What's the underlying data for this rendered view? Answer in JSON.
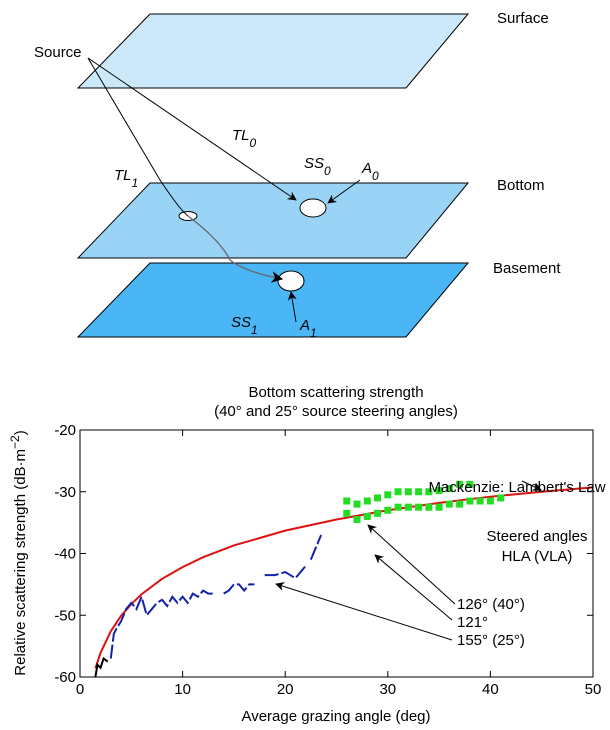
{
  "diagram": {
    "planes": [
      "Surface",
      "Bottom",
      "Basement"
    ],
    "source": "Source",
    "labels": [
      {
        "main": "TL",
        "sub": "0"
      },
      {
        "main": "TL",
        "sub": "1"
      },
      {
        "main": "SS",
        "sub": "0"
      },
      {
        "main": "A",
        "sub": "0"
      },
      {
        "main": "SS",
        "sub": "1"
      },
      {
        "main": "A",
        "sub": "1"
      }
    ]
  },
  "chart_data": {
    "type": "line",
    "title": [
      "Bottom scattering strength",
      "(40° and 25° source steering angles)"
    ],
    "xlabel": "Average grazing angle (deg)",
    "ylabel": {
      "text": "Relative scattering strength (dB·m",
      "sup": "−2",
      "end": ")"
    },
    "xlim": [
      0,
      50
    ],
    "xticks": [
      0,
      10,
      20,
      30,
      40,
      50
    ],
    "ylim": [
      -60,
      -20
    ],
    "yticks": [
      -60,
      -50,
      -40,
      -30,
      -20
    ],
    "series": [
      {
        "color": "#dd1111",
        "kind": "line",
        "x": [
          1.5,
          2,
          3,
          4,
          5,
          6,
          8,
          10,
          12,
          15,
          20,
          25,
          30,
          35,
          40,
          45,
          50
        ],
        "values": [
          -58.6,
          -56.1,
          -52.6,
          -50.1,
          -48.2,
          -46.6,
          -44.1,
          -42.2,
          -40.6,
          -38.7,
          -36.3,
          -34.5,
          -33.0,
          -31.8,
          -30.8,
          -30.0,
          -29.3
        ]
      },
      {
        "color": "#000000",
        "kind": "line",
        "x": [
          1.5,
          1.7,
          2,
          2.3,
          2.7
        ],
        "values": [
          -60,
          -58,
          -58.5,
          -57,
          -57.5
        ]
      },
      {
        "color": "#1122aa",
        "kind": "dashed",
        "x": [
          3,
          3.3,
          3.6,
          4,
          4.5,
          5,
          5.5,
          6,
          6.5,
          7,
          7.5,
          8,
          8.5,
          9,
          9.5,
          10,
          10.5,
          11,
          11.5,
          12,
          12.5,
          13,
          13.5,
          14,
          14.5,
          15,
          15.5,
          16,
          16.5,
          17,
          17.5,
          18,
          19,
          20,
          21,
          22,
          22.3,
          22.5,
          23.5
        ],
        "values": [
          -57,
          -53,
          -52,
          -51,
          -49,
          -48,
          -49,
          -47,
          -50,
          -49,
          -48,
          -47.5,
          -48.5,
          -47,
          -48,
          -47,
          -48,
          -46.5,
          -47,
          -46,
          -46.5,
          -46.5,
          null,
          -46.5,
          -46,
          -45,
          -45,
          -46,
          -45,
          -45,
          null,
          -43.5,
          -43.5,
          -43,
          -44,
          -42,
          null,
          -41,
          -37
        ]
      },
      {
        "color": "#22dd22",
        "kind": "scatter",
        "x": [
          26,
          27,
          28,
          29,
          30,
          31,
          32,
          33,
          34,
          35,
          36,
          37,
          38
        ],
        "values": [
          -31.5,
          -32,
          -31.5,
          -31,
          -30.5,
          -30,
          -30,
          -30,
          -30,
          -29.8,
          -29.5,
          -28.8,
          -28.8
        ]
      },
      {
        "color": "#22dd22",
        "kind": "scatter",
        "x": [
          26,
          27,
          28,
          29,
          30,
          31,
          32,
          33,
          34,
          35,
          36,
          37,
          38,
          39,
          40,
          41
        ],
        "values": [
          -33.5,
          -34.5,
          -34,
          -33.5,
          -33,
          -32.5,
          -32.5,
          -32.5,
          -32.5,
          -32.5,
          -32,
          -32,
          -31.5,
          -31.5,
          -31.5,
          -31
        ]
      }
    ],
    "annotations": [
      "Mackenzie: Lambert's Law",
      "Steered angles",
      "HLA (VLA)",
      "126° (40°)",
      "121°",
      "155° (25°)"
    ]
  }
}
